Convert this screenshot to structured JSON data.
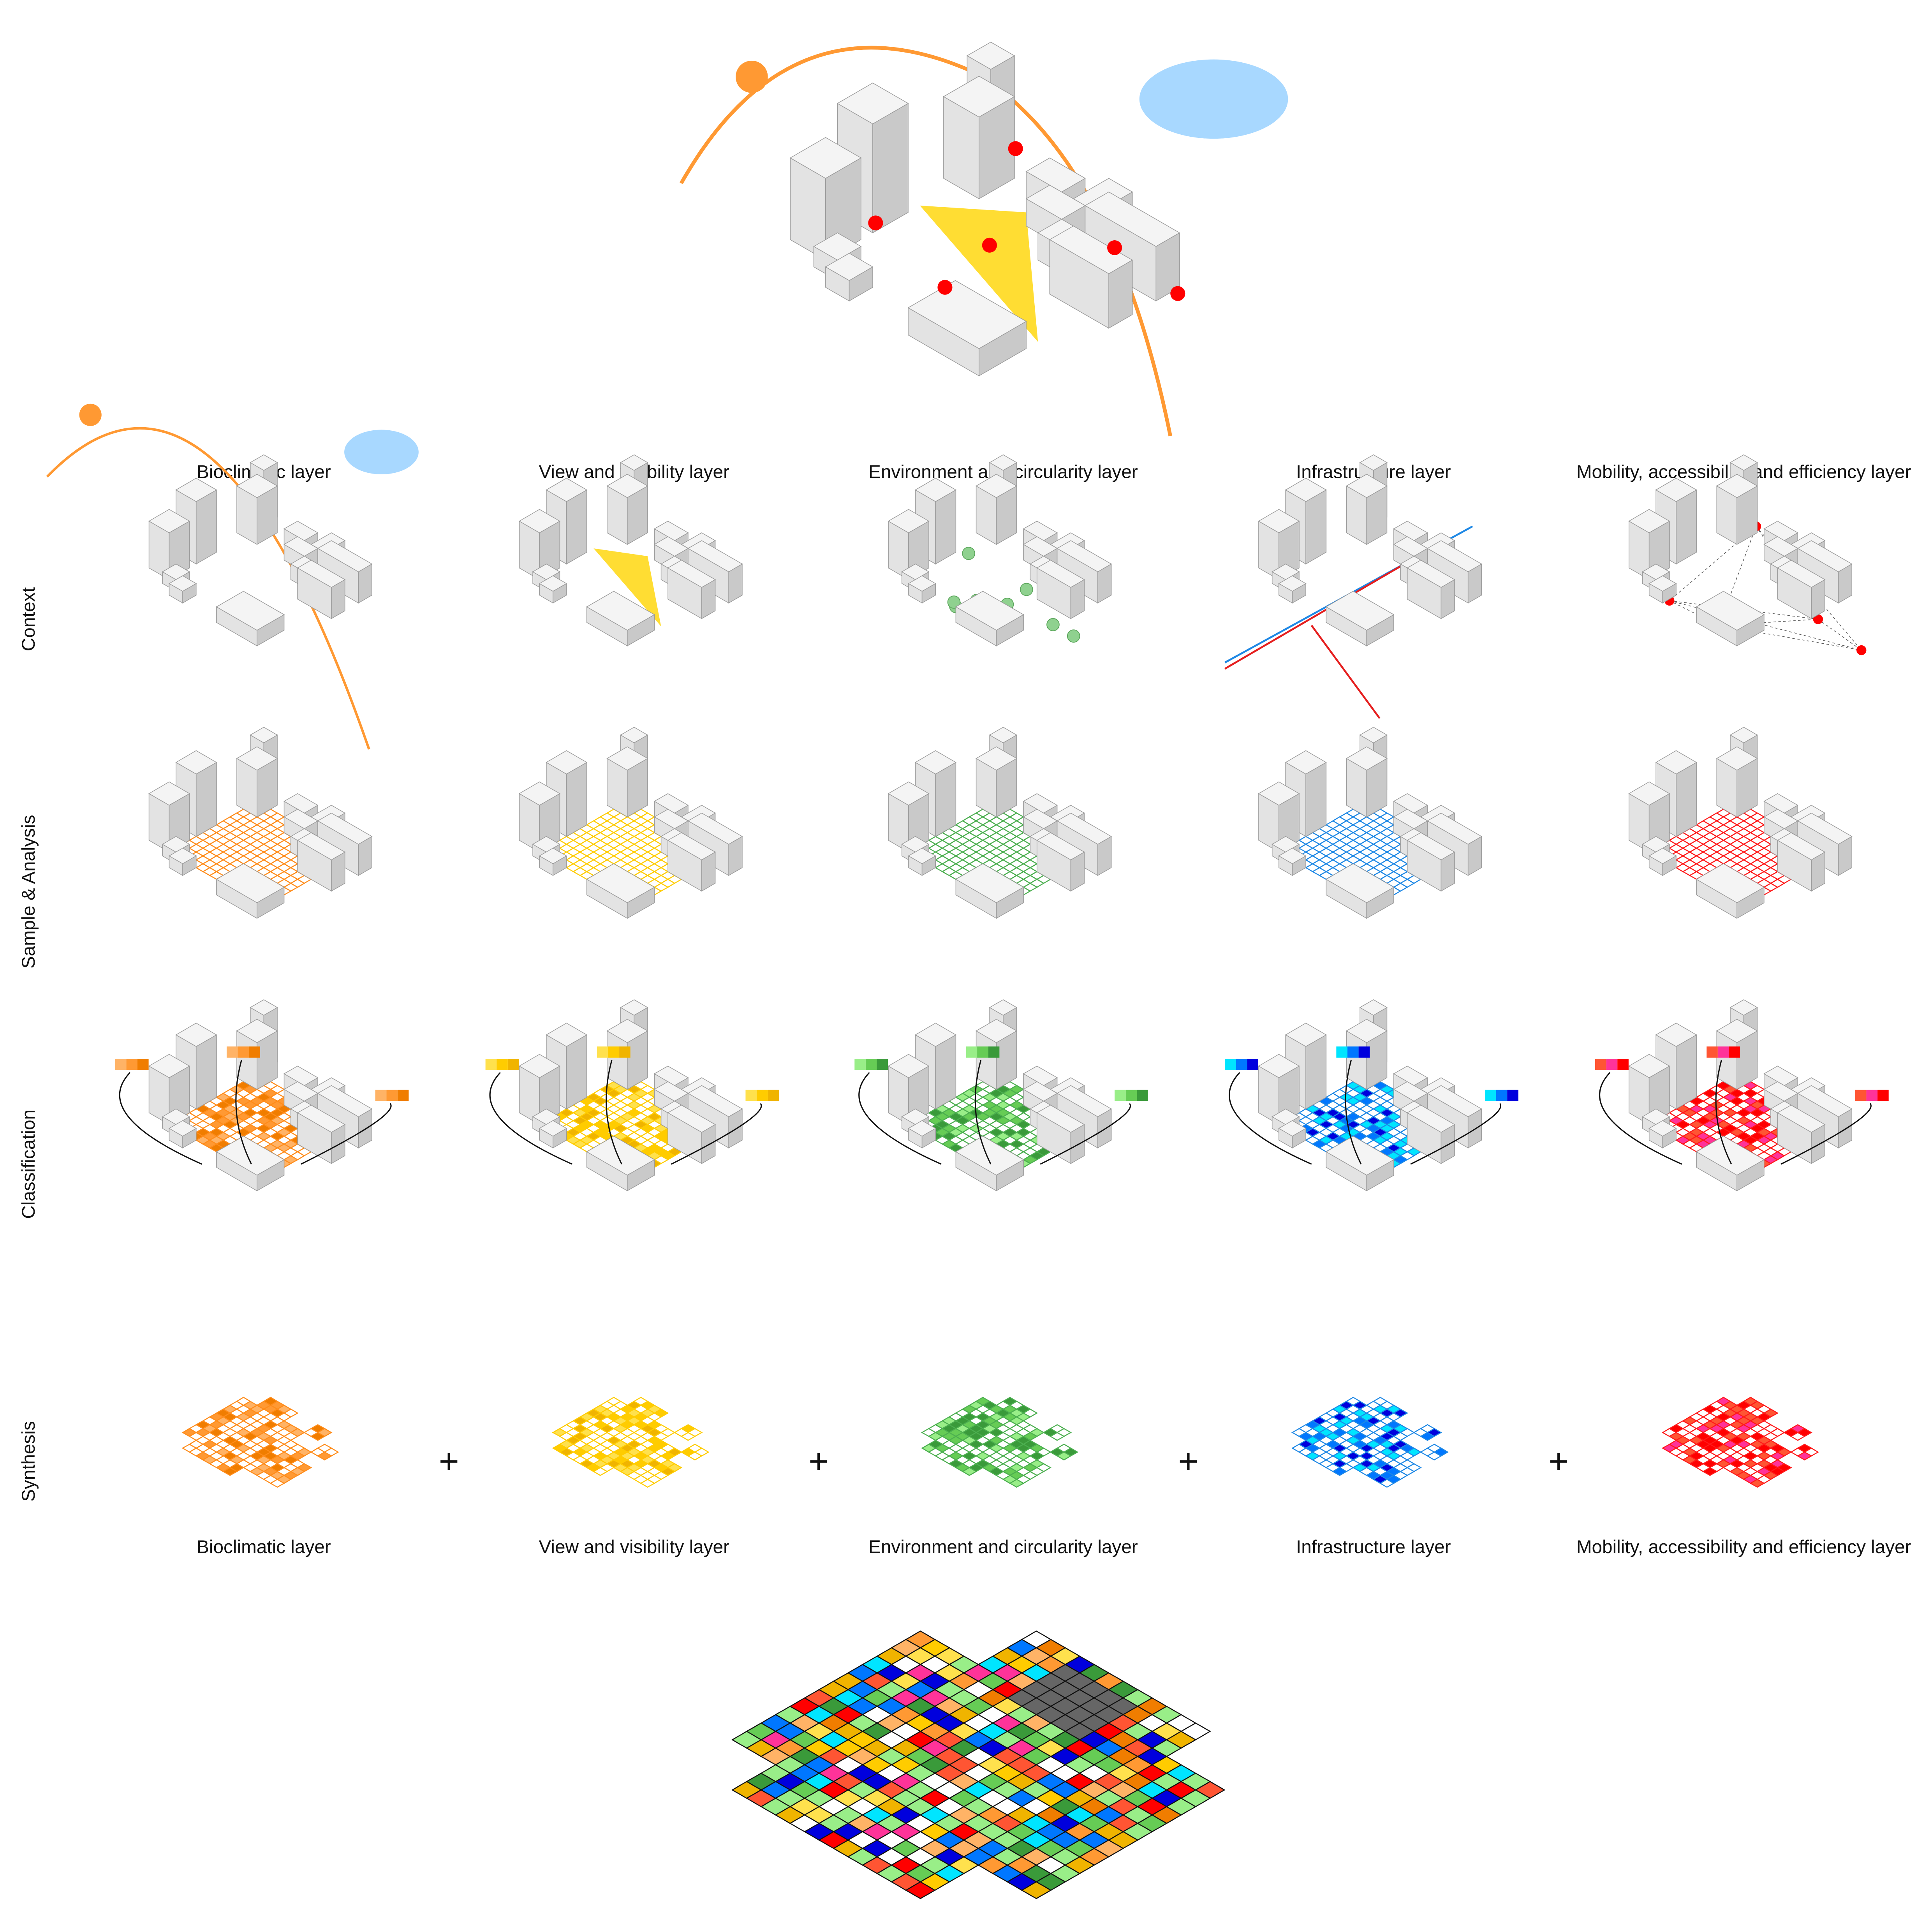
{
  "columns": [
    {
      "title": "Bioclimatic layer"
    },
    {
      "title": "View and visibility layer"
    },
    {
      "title": "Environment and circularity layer"
    },
    {
      "title": "Infrastructure layer"
    },
    {
      "title": "Mobility, accessibility and efficiency layer"
    }
  ],
  "rows": [
    "Context",
    "Sample & Analysis",
    "Classification",
    "Synthesis"
  ],
  "synthesis": {
    "labels": [
      "Bioclimatic layer",
      "View and visibility layer",
      "Environment and circularity layer",
      "Infrastructure layer",
      "Mobility, accessibility and efficiency layer"
    ],
    "operators": [
      "+",
      "+",
      "+",
      "+"
    ]
  }
}
